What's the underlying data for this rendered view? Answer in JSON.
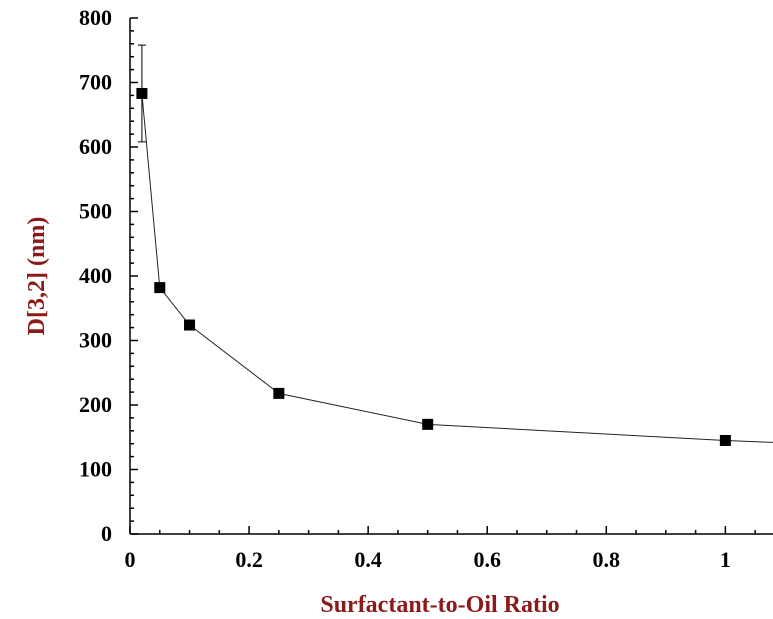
{
  "chart_data": {
    "type": "scatter",
    "xlabel": "Surfactant-to-Oil Ratio",
    "ylabel": "D[3,2] (nm)",
    "xlim": [
      0,
      1.08
    ],
    "ylim": [
      0,
      800
    ],
    "x_ticks": [
      "0",
      "0.2",
      "0.4",
      "0.6",
      "0.8",
      "1"
    ],
    "y_ticks": [
      "0",
      "100",
      "200",
      "300",
      "400",
      "500",
      "600",
      "700",
      "800"
    ],
    "grid": false,
    "legend": "none",
    "series": [
      {
        "x": [
          0.02,
          0.05,
          0.1,
          0.25,
          0.5,
          1.0
        ],
        "y": [
          683,
          382,
          324,
          218,
          170,
          145
        ],
        "y_error": [
          75,
          0,
          0,
          0,
          0,
          0
        ],
        "line_extends_to_x": 1.08,
        "line_end_y": 142
      }
    ],
    "colors": {
      "axis_title": "#8b1a1a",
      "marker": "#000000",
      "line": "#222222"
    }
  }
}
